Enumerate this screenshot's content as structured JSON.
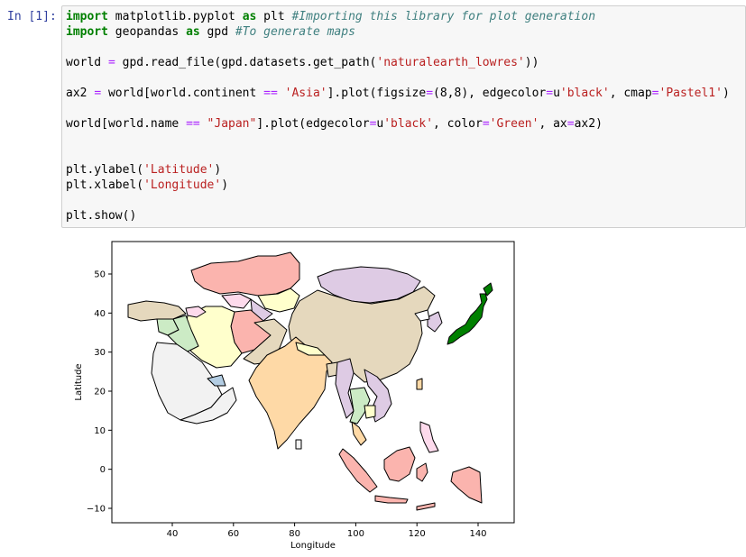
{
  "cell": {
    "prompt": "In [1]:",
    "lines": [
      [
        {
          "t": "import",
          "c": "kw"
        },
        {
          "t": " matplotlib.pyplot "
        },
        {
          "t": "as",
          "c": "kw"
        },
        {
          "t": " plt "
        },
        {
          "t": "#Importing this library for plot generation",
          "c": "cm"
        }
      ],
      [
        {
          "t": "import",
          "c": "kw"
        },
        {
          "t": " geopandas "
        },
        {
          "t": "as",
          "c": "kw"
        },
        {
          "t": " gpd "
        },
        {
          "t": "#To generate maps",
          "c": "cm"
        }
      ],
      [],
      [
        {
          "t": "world "
        },
        {
          "t": "=",
          "c": "op"
        },
        {
          "t": " gpd.read_file(gpd.datasets.get_path("
        },
        {
          "t": "'naturalearth_lowres'",
          "c": "st"
        },
        {
          "t": "))"
        }
      ],
      [],
      [
        {
          "t": "ax2 "
        },
        {
          "t": "=",
          "c": "op"
        },
        {
          "t": " world[world.continent "
        },
        {
          "t": "==",
          "c": "op"
        },
        {
          "t": " "
        },
        {
          "t": "'Asia'",
          "c": "st"
        },
        {
          "t": "].plot(figsize"
        },
        {
          "t": "=",
          "c": "op"
        },
        {
          "t": "(8,8), edgecolor"
        },
        {
          "t": "=",
          "c": "op"
        },
        {
          "t": "u"
        },
        {
          "t": "'black'",
          "c": "st"
        },
        {
          "t": ", cmap"
        },
        {
          "t": "=",
          "c": "op"
        },
        {
          "t": "'Pastel1'",
          "c": "st"
        },
        {
          "t": ")"
        }
      ],
      [],
      [
        {
          "t": "world[world.name "
        },
        {
          "t": "==",
          "c": "op"
        },
        {
          "t": " "
        },
        {
          "t": "\"Japan\"",
          "c": "st"
        },
        {
          "t": "].plot(edgecolor"
        },
        {
          "t": "=",
          "c": "op"
        },
        {
          "t": "u"
        },
        {
          "t": "'black'",
          "c": "st"
        },
        {
          "t": ", color"
        },
        {
          "t": "=",
          "c": "op"
        },
        {
          "t": "'Green'",
          "c": "st"
        },
        {
          "t": ", ax"
        },
        {
          "t": "=",
          "c": "op"
        },
        {
          "t": "ax2)"
        }
      ],
      [],
      [],
      [
        {
          "t": "plt.ylabel("
        },
        {
          "t": "'Latitude'",
          "c": "st"
        },
        {
          "t": ")"
        }
      ],
      [
        {
          "t": "plt.xlabel("
        },
        {
          "t": "'Longitude'",
          "c": "st"
        },
        {
          "t": ")"
        }
      ],
      [],
      [
        {
          "t": "plt.show()"
        }
      ]
    ]
  },
  "chart_data": {
    "type": "map",
    "xlabel": "Longitude",
    "ylabel": "Latitude",
    "xticks": [
      40,
      60,
      80,
      100,
      120,
      140
    ],
    "yticks": [
      50,
      40,
      30,
      20,
      10,
      0,
      -10
    ],
    "xticklabels": [
      "40",
      "60",
      "80",
      "100",
      "120",
      "140"
    ],
    "yticklabels": [
      "50",
      "40",
      "30",
      "20",
      "10",
      "0",
      "−10"
    ],
    "highlight_color": "#008000",
    "region_colors": [
      "#fbb4ae",
      "#b3cde3",
      "#ccebc5",
      "#decbe4",
      "#fed9a6",
      "#ffffcc",
      "#e5d8bd",
      "#fddaec",
      "#f2f2f2"
    ]
  }
}
